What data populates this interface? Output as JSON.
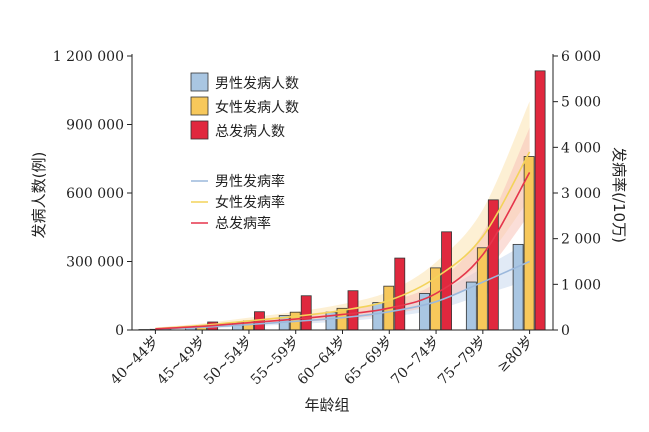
{
  "chart_data": {
    "type": "bar+line",
    "categories": [
      "40~44岁",
      "45~49岁",
      "50~54岁",
      "55~59岁",
      "60~64岁",
      "65~69岁",
      "70~74岁",
      "75~79岁",
      "≥80岁"
    ],
    "bar_series": [
      {
        "name": "男性发病人数",
        "color": "#a9c6e2",
        "values": [
          2000,
          15000,
          33000,
          63000,
          78000,
          120000,
          160000,
          210000,
          375000
        ]
      },
      {
        "name": "女性发病人数",
        "color": "#f7c85b",
        "values": [
          3000,
          20000,
          40000,
          78000,
          95000,
          192000,
          272000,
          360000,
          760000
        ]
      },
      {
        "name": "总发病人数",
        "color": "#e0283e",
        "values": [
          5000,
          35000,
          80000,
          150000,
          172000,
          315000,
          430000,
          570000,
          1135000
        ]
      }
    ],
    "line_series": [
      {
        "name": "男性发病率",
        "color": "#9bb8dc",
        "values": [
          20,
          60,
          120,
          190,
          270,
          400,
          620,
          1050,
          1500
        ]
      },
      {
        "name": "女性发病率",
        "color": "#f3d35a",
        "values": [
          30,
          100,
          200,
          300,
          430,
          650,
          1150,
          2050,
          3900
        ]
      },
      {
        "name": "总发病率",
        "color": "#e5354b",
        "values": [
          25,
          80,
          160,
          240,
          340,
          480,
          800,
          1650,
          3450
        ]
      }
    ],
    "xlabel": "年龄组",
    "ylabel_left": "发病人数(例)",
    "ylabel_right": "发病率(/10万)",
    "yticks_left": [
      "0",
      "300 000",
      "600 000",
      "900 000",
      "1 200 000"
    ],
    "yticks_right": [
      "0",
      "1 000",
      "2 000",
      "3 000",
      "4 000",
      "5 000",
      "6 000"
    ],
    "ylim_left": [
      0,
      1200000
    ],
    "ylim_right": [
      0,
      6000
    ],
    "legend_position": "top-left inside plot"
  }
}
